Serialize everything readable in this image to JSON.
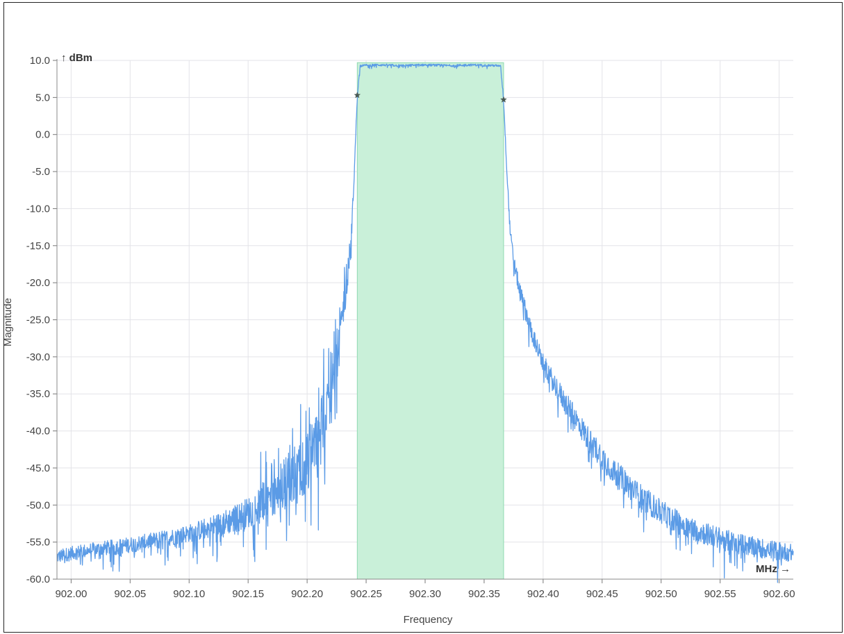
{
  "chart_data": {
    "type": "line",
    "title": "",
    "xlabel": "Frequency",
    "ylabel": "Magnitude",
    "x_unit": "MHz →",
    "y_unit": "↑ dBm",
    "xlim": [
      901.988,
      902.612
    ],
    "ylim": [
      -60,
      10
    ],
    "x_ticks": [
      902.0,
      902.05,
      902.1,
      902.15,
      902.2,
      902.25,
      902.3,
      902.35,
      902.4,
      902.45,
      902.5,
      902.55,
      902.6
    ],
    "x_tick_labels": [
      "902.00",
      "902.05",
      "902.10",
      "902.15",
      "902.20",
      "902.25",
      "902.30",
      "902.35",
      "902.40",
      "902.45",
      "902.50",
      "902.55",
      "902.60"
    ],
    "y_ticks": [
      10,
      5,
      0,
      -5,
      -10,
      -15,
      -20,
      -25,
      -30,
      -35,
      -40,
      -45,
      -50,
      -55,
      -60
    ],
    "y_tick_labels": [
      "10.0",
      "5.0",
      "0.0",
      "-5.0",
      "-10.0",
      "-15.0",
      "-20.0",
      "-25.0",
      "-30.0",
      "-35.0",
      "-40.0",
      "-45.0",
      "-50.0",
      "-55.0",
      "-60.0"
    ],
    "grid": true,
    "band": {
      "start": 902.2425,
      "end": 902.3665,
      "top": 9.7,
      "color": "#c9f0d9",
      "edge_color": "#8fd9b0"
    },
    "markers": [
      {
        "x": 902.2425,
        "y": 5.3
      },
      {
        "x": 902.3665,
        "y": 4.7
      }
    ],
    "series": [
      {
        "color": "#5b9be6",
        "points": [
          [
            901.988,
            -57.0
          ],
          [
            902.0,
            -56.5
          ],
          [
            902.02,
            -56.0
          ],
          [
            902.04,
            -55.6
          ],
          [
            902.06,
            -55.1
          ],
          [
            902.08,
            -54.5
          ],
          [
            902.1,
            -53.8
          ],
          [
            902.12,
            -52.9
          ],
          [
            902.14,
            -51.8
          ],
          [
            902.16,
            -50.2
          ],
          [
            902.18,
            -48.0
          ],
          [
            902.19,
            -46.5
          ],
          [
            902.2,
            -44.0
          ],
          [
            902.21,
            -40.5
          ],
          [
            902.22,
            -35.0
          ],
          [
            902.225,
            -31.0
          ],
          [
            902.23,
            -25.0
          ],
          [
            902.235,
            -18.0
          ],
          [
            902.238,
            -12.0
          ],
          [
            902.24,
            -5.0
          ],
          [
            902.2425,
            5.3
          ],
          [
            902.245,
            9.3
          ],
          [
            902.26,
            9.4
          ],
          [
            902.28,
            9.3
          ],
          [
            902.3,
            9.4
          ],
          [
            902.32,
            9.3
          ],
          [
            902.34,
            9.4
          ],
          [
            902.36,
            9.3
          ],
          [
            902.364,
            9.2
          ],
          [
            902.3665,
            4.7
          ],
          [
            902.369,
            -4.0
          ],
          [
            902.372,
            -13.0
          ],
          [
            902.375,
            -17.0
          ],
          [
            902.38,
            -21.0
          ],
          [
            902.39,
            -26.5
          ],
          [
            902.4,
            -31.0
          ],
          [
            902.42,
            -36.5
          ],
          [
            902.44,
            -41.5
          ],
          [
            902.46,
            -45.5
          ],
          [
            902.48,
            -48.5
          ],
          [
            902.5,
            -51.0
          ],
          [
            902.52,
            -52.8
          ],
          [
            902.54,
            -54.0
          ],
          [
            902.56,
            -55.0
          ],
          [
            902.58,
            -55.7
          ],
          [
            902.6,
            -56.2
          ],
          [
            902.612,
            -56.5
          ]
        ],
        "noise_profile": [
          [
            901.988,
            1.5
          ],
          [
            902.1,
            2.0
          ],
          [
            902.15,
            3.5
          ],
          [
            902.18,
            5.0
          ],
          [
            902.2,
            7.0
          ],
          [
            902.22,
            6.0
          ],
          [
            902.235,
            3.0
          ],
          [
            902.24,
            1.0
          ],
          [
            902.245,
            0.25
          ],
          [
            902.364,
            0.25
          ],
          [
            902.37,
            1.0
          ],
          [
            902.38,
            2.0
          ],
          [
            902.45,
            3.0
          ],
          [
            902.55,
            2.5
          ],
          [
            902.612,
            2.0
          ]
        ]
      }
    ]
  }
}
